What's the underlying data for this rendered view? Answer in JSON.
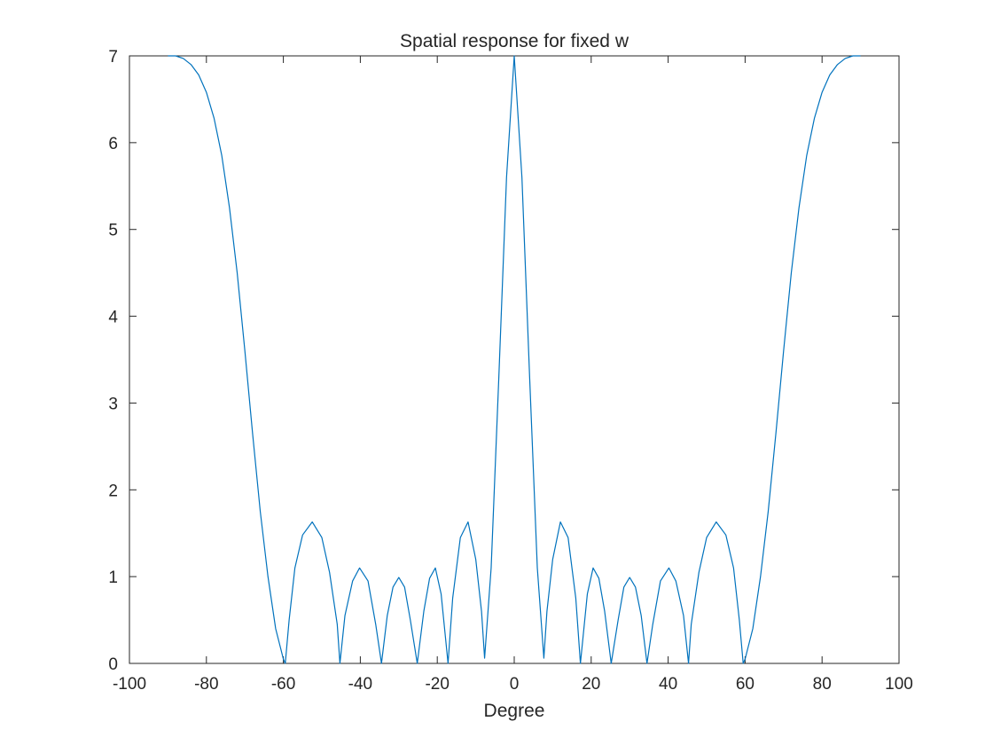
{
  "chart_data": {
    "type": "line",
    "title": "Spatial response for fixed w",
    "xlabel": "Degree",
    "ylabel": "",
    "xlim": [
      -100,
      100
    ],
    "ylim": [
      0,
      7
    ],
    "xticks": [
      -100,
      -80,
      -60,
      -40,
      -20,
      0,
      20,
      40,
      60,
      80,
      100
    ],
    "yticks": [
      0,
      1,
      2,
      3,
      4,
      5,
      6,
      7
    ],
    "xtick_labels": [
      "-100",
      "-80",
      "-60",
      "-40",
      "-20",
      "0",
      "20",
      "40",
      "60",
      "80",
      "100"
    ],
    "ytick_labels": [
      "0",
      "1",
      "2",
      "3",
      "4",
      "5",
      "6",
      "7"
    ],
    "grid": false,
    "box": true,
    "series": [
      {
        "color": "#0072BD",
        "x": [
          -90,
          -88,
          -86,
          -84,
          -82,
          -80,
          -78,
          -76,
          -74,
          -72,
          -70,
          -68,
          -66,
          -64,
          -62,
          -60,
          -59.5,
          -58.5,
          -57,
          -55,
          -52.5,
          -50,
          -48,
          -46,
          -45.3,
          -44,
          -42,
          -40.2,
          -38,
          -36,
          -34.5,
          -33,
          -31.5,
          -30,
          -28.5,
          -27,
          -25.2,
          -23.5,
          -22,
          -20.5,
          -19,
          -17.2,
          -16,
          -14,
          -12,
          -10,
          -8.5,
          -7.7,
          -6,
          -4,
          -2,
          0,
          2,
          4,
          6,
          7.7,
          8.5,
          10,
          12,
          14,
          16,
          17.2,
          19,
          20.5,
          22,
          23.5,
          25.2,
          27,
          28.5,
          30,
          31.5,
          33,
          34.5,
          36,
          38,
          40.2,
          42,
          44,
          45.3,
          46,
          48,
          50,
          52.5,
          55,
          57,
          58.5,
          59.5,
          60,
          62,
          64,
          66,
          68,
          70,
          72,
          74,
          76,
          78,
          80,
          82,
          84,
          86,
          88,
          90
        ],
        "y": [
          7.0,
          7.0,
          6.97,
          6.9,
          6.78,
          6.58,
          6.28,
          5.85,
          5.25,
          4.5,
          3.6,
          2.65,
          1.75,
          1.0,
          0.4,
          0.05,
          0.0,
          0.5,
          1.1,
          1.48,
          1.63,
          1.45,
          1.05,
          0.45,
          0.0,
          0.55,
          0.95,
          1.1,
          0.95,
          0.45,
          0.0,
          0.55,
          0.88,
          0.99,
          0.88,
          0.5,
          0.0,
          0.6,
          0.98,
          1.1,
          0.8,
          0.0,
          0.75,
          1.45,
          1.63,
          1.2,
          0.6,
          0.06,
          1.1,
          3.3,
          5.6,
          7.0,
          5.6,
          3.3,
          1.1,
          0.06,
          0.6,
          1.2,
          1.63,
          1.45,
          0.75,
          0.0,
          0.8,
          1.1,
          0.98,
          0.6,
          0.0,
          0.5,
          0.88,
          0.99,
          0.88,
          0.55,
          0.0,
          0.45,
          0.95,
          1.1,
          0.95,
          0.55,
          0.0,
          0.45,
          1.05,
          1.45,
          1.63,
          1.48,
          1.1,
          0.5,
          0.0,
          0.05,
          0.4,
          1.0,
          1.75,
          2.65,
          3.6,
          4.5,
          5.25,
          5.85,
          6.28,
          6.58,
          6.78,
          6.9,
          6.97,
          7.0,
          7.0
        ]
      }
    ]
  }
}
